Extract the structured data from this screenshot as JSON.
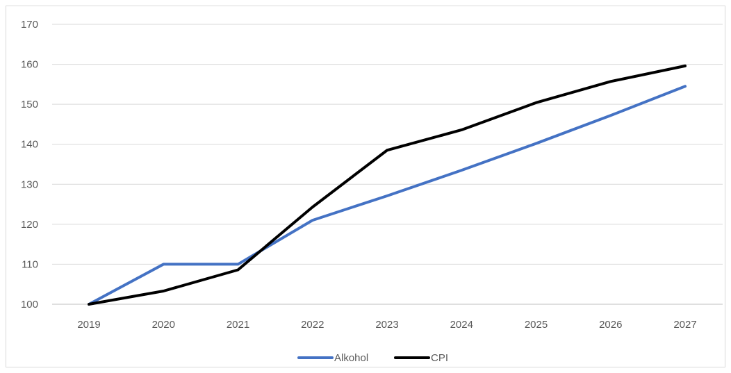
{
  "chart_data": {
    "type": "line",
    "title": "",
    "xlabel": "",
    "ylabel": "",
    "categories": [
      "2019",
      "2020",
      "2021",
      "2022",
      "2023",
      "2024",
      "2025",
      "2026",
      "2027"
    ],
    "ylim": [
      100,
      170
    ],
    "yticks": [
      100,
      110,
      120,
      130,
      140,
      150,
      160,
      170
    ],
    "grid": "horizontal",
    "legend_position": "bottom",
    "series": [
      {
        "name": "Alkohol",
        "color": "#4472c4",
        "values": [
          100,
          110,
          110,
          121,
          127.1,
          133.5,
          140.2,
          147.2,
          154.5
        ]
      },
      {
        "name": "CPI",
        "color": "#000000",
        "values": [
          100,
          103.3,
          108.6,
          124.3,
          138.5,
          143.6,
          150.4,
          155.7,
          159.6
        ]
      }
    ]
  }
}
